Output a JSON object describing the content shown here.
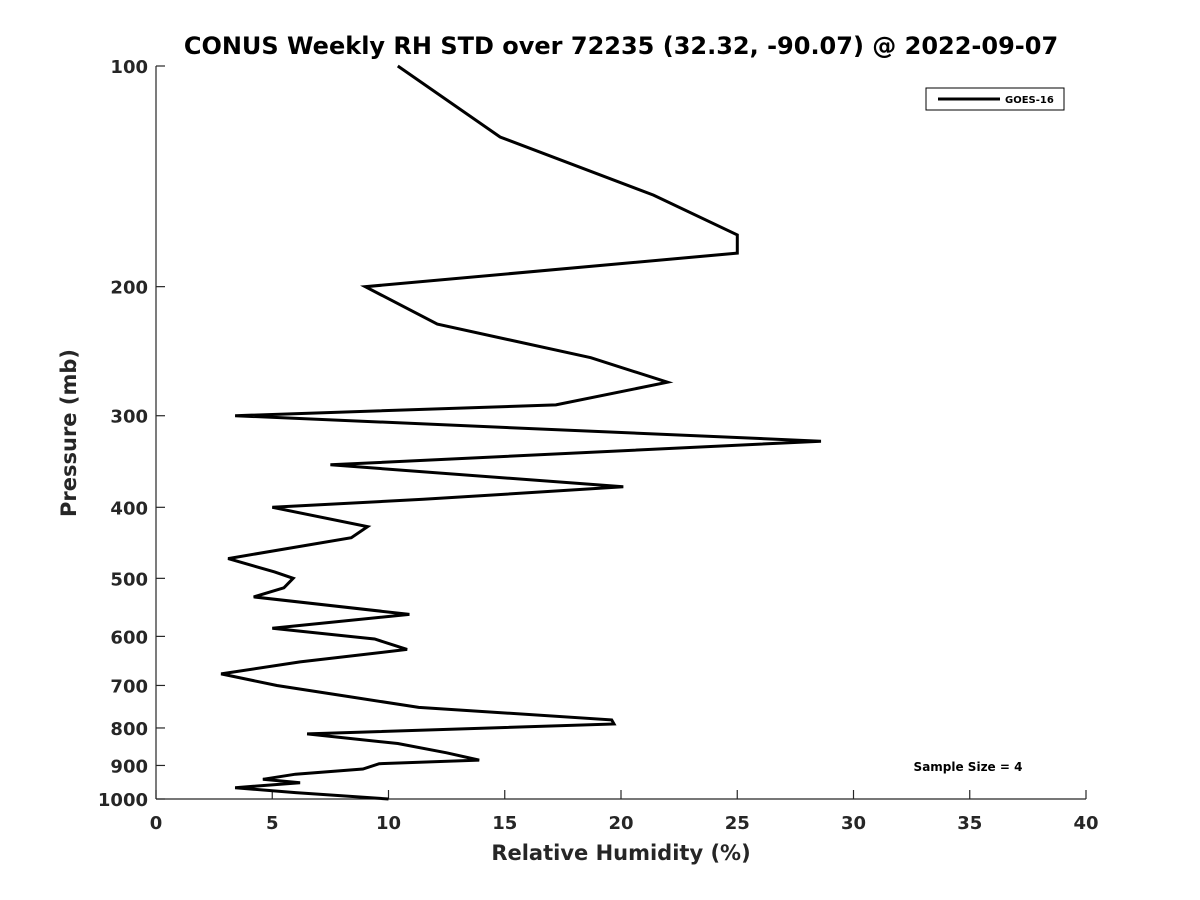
{
  "chart_data": {
    "type": "line",
    "title": "CONUS Weekly RH STD over 72235 (32.32, -90.07) @ 2022-09-07",
    "xlabel": "Relative Humidity (%)",
    "ylabel": "Pressure (mb)",
    "xlim": [
      0,
      40
    ],
    "ylim": [
      100,
      1000
    ],
    "y_scale": "log",
    "y_reversed": true,
    "x_ticks": [
      0,
      5,
      10,
      15,
      20,
      25,
      30,
      35,
      40
    ],
    "x_tick_labels": [
      "0",
      "5",
      "10",
      "15",
      "20",
      "25",
      "30",
      "35",
      "40"
    ],
    "y_ticks": [
      100,
      200,
      300,
      400,
      500,
      600,
      700,
      800,
      900,
      1000
    ],
    "y_tick_labels": [
      "100",
      "200",
      "300",
      "400",
      "500",
      "600",
      "700",
      "800",
      "900",
      "1000"
    ],
    "grid": false,
    "legend_position": "top-right",
    "annotation": "Sample Size = 4",
    "line_color": "#000000",
    "series": [
      {
        "name": "GOES-16",
        "x": [
          10.4,
          14.8,
          21.4,
          25.0,
          25.0,
          9.0,
          12.1,
          18.7,
          22.0,
          17.2,
          3.4,
          28.6,
          7.5,
          20.1,
          11.5,
          5.0,
          9.1,
          8.4,
          3.1,
          5.1,
          5.9,
          5.5,
          4.2,
          10.9,
          5.0,
          9.4,
          10.8,
          6.2,
          2.8,
          5.2,
          8.3,
          11.3,
          19.6,
          19.7,
          6.5,
          10.4,
          12.5,
          13.9,
          9.6,
          8.9,
          6.0,
          4.6,
          6.2,
          3.4,
          6.0,
          10.0
        ],
        "y": [
          100,
          125,
          150,
          170,
          180,
          200,
          225,
          250,
          270,
          290,
          300,
          325,
          350,
          375,
          390,
          400,
          425,
          440,
          470,
          490,
          500,
          515,
          530,
          560,
          585,
          605,
          625,
          650,
          675,
          700,
          725,
          750,
          780,
          790,
          815,
          840,
          865,
          885,
          895,
          910,
          925,
          940,
          950,
          965,
          980,
          1000
        ]
      }
    ]
  }
}
